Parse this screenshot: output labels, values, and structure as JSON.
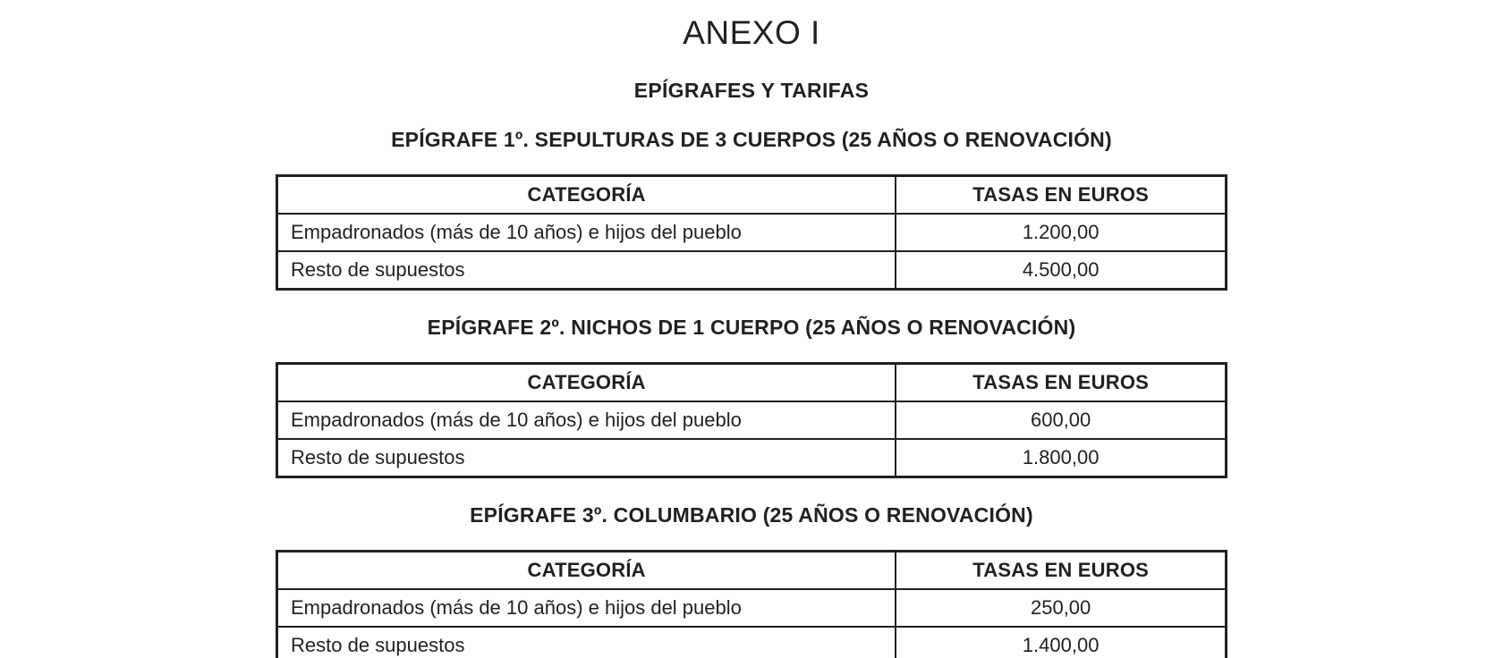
{
  "page": {
    "title": "ANEXO I",
    "subtitle": "EPÍGRAFES Y TARIFAS"
  },
  "text_color": "#231f20",
  "sections": [
    {
      "heading": "EPÍGRAFE 1º. SEPULTURAS DE 3 CUERPOS (25 AÑOS O RENOVACIÓN)",
      "table": {
        "headers": [
          "CATEGORÍA",
          "TASAS EN EUROS"
        ],
        "rows": [
          [
            "Empadronados (más de 10 años) e hijos del pueblo",
            "1.200,00"
          ],
          [
            "Resto de supuestos",
            "4.500,00"
          ]
        ]
      }
    },
    {
      "heading": "EPÍGRAFE 2º. NICHOS DE 1 CUERPO (25 AÑOS O RENOVACIÓN)",
      "table": {
        "headers": [
          "CATEGORÍA",
          "TASAS EN EUROS"
        ],
        "rows": [
          [
            "Empadronados (más de 10 años) e hijos del pueblo",
            "600,00"
          ],
          [
            "Resto de supuestos",
            "1.800,00"
          ]
        ]
      }
    },
    {
      "heading": "EPÍGRAFE 3º. COLUMBARIO (25 AÑOS O RENOVACIÓN)",
      "table": {
        "headers": [
          "CATEGORÍA",
          "TASAS EN EUROS"
        ],
        "rows": [
          [
            "Empadronados (más de 10 años) e hijos del pueblo",
            "250,00"
          ],
          [
            "Resto de supuestos",
            "1.400,00"
          ]
        ]
      }
    }
  ]
}
